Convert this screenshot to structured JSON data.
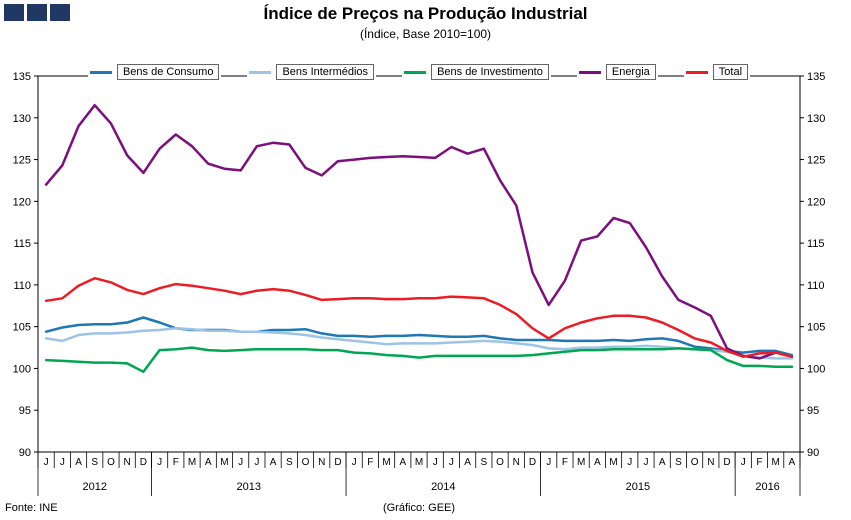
{
  "header": {
    "title": "Índice de Preços na Produção Industrial",
    "subtitle": "(Índice, Base 2010=100)"
  },
  "footer": {
    "source": "Fonte: INE",
    "credit": "(Gráfico: GEE)"
  },
  "logo": {
    "color": "#1F3864"
  },
  "chart_data": {
    "type": "line",
    "title": "Índice de Preços na Produção Industrial",
    "subtitle": "(Índice, Base 2010=100)",
    "ylabel": "",
    "xlabel": "",
    "ylim": [
      90,
      135
    ],
    "ytick_step": 5,
    "grid": false,
    "legend_position": "top",
    "months": [
      "J",
      "J",
      "A",
      "S",
      "O",
      "N",
      "D",
      "J",
      "F",
      "M",
      "A",
      "M",
      "J",
      "J",
      "A",
      "S",
      "O",
      "N",
      "D",
      "J",
      "F",
      "M",
      "A",
      "M",
      "J",
      "J",
      "A",
      "S",
      "O",
      "N",
      "D",
      "J",
      "F",
      "M",
      "A",
      "M",
      "J",
      "J",
      "A",
      "S",
      "O",
      "N",
      "D",
      "J",
      "F",
      "M",
      "A"
    ],
    "year_groups": [
      {
        "label": "2012",
        "count": 7
      },
      {
        "label": "2013",
        "count": 12
      },
      {
        "label": "2014",
        "count": 12
      },
      {
        "label": "2015",
        "count": 12
      },
      {
        "label": "2016",
        "count": 4
      }
    ],
    "series": [
      {
        "name": "Bens de Consumo",
        "color": "#1F78B4",
        "values": [
          104.4,
          104.9,
          105.2,
          105.3,
          105.3,
          105.5,
          106.1,
          105.5,
          104.8,
          104.6,
          104.6,
          104.6,
          104.4,
          104.4,
          104.6,
          104.6,
          104.7,
          104.2,
          103.9,
          103.9,
          103.8,
          103.9,
          103.9,
          104.0,
          103.9,
          103.8,
          103.8,
          103.9,
          103.6,
          103.4,
          103.4,
          103.4,
          103.3,
          103.3,
          103.3,
          103.4,
          103.3,
          103.5,
          103.6,
          103.3,
          102.6,
          102.4,
          102.1,
          101.9,
          102.1,
          102.1,
          101.6
        ]
      },
      {
        "name": "Bens Intermédios",
        "color": "#9DC3E6",
        "values": [
          103.6,
          103.3,
          104.0,
          104.2,
          104.2,
          104.3,
          104.5,
          104.6,
          104.8,
          104.7,
          104.5,
          104.5,
          104.4,
          104.4,
          104.3,
          104.2,
          104.0,
          103.7,
          103.5,
          103.3,
          103.1,
          102.9,
          103.0,
          103.0,
          103.0,
          103.1,
          103.2,
          103.3,
          103.2,
          103.0,
          102.8,
          102.4,
          102.3,
          102.5,
          102.5,
          102.6,
          102.6,
          102.7,
          102.6,
          102.4,
          102.3,
          102.2,
          102.0,
          101.5,
          101.3,
          101.2,
          101.2
        ]
      },
      {
        "name": "Bens de Investimento",
        "color": "#00A651",
        "values": [
          101.0,
          100.9,
          100.8,
          100.7,
          100.7,
          100.6,
          99.6,
          102.2,
          102.3,
          102.5,
          102.2,
          102.1,
          102.2,
          102.3,
          102.3,
          102.3,
          102.3,
          102.2,
          102.2,
          101.9,
          101.8,
          101.6,
          101.5,
          101.3,
          101.5,
          101.5,
          101.5,
          101.5,
          101.5,
          101.5,
          101.6,
          101.8,
          102.0,
          102.2,
          102.2,
          102.3,
          102.3,
          102.3,
          102.3,
          102.4,
          102.3,
          102.2,
          101.0,
          100.3,
          100.3,
          100.2,
          100.2
        ]
      },
      {
        "name": "Energia",
        "color": "#7D0E7E",
        "values": [
          122.0,
          124.3,
          129.0,
          131.5,
          129.3,
          125.5,
          123.4,
          126.3,
          128.0,
          126.6,
          124.5,
          123.9,
          123.7,
          126.6,
          127.0,
          126.8,
          124.0,
          123.1,
          124.8,
          125.0,
          125.2,
          125.3,
          125.4,
          125.3,
          125.2,
          126.5,
          125.7,
          126.3,
          122.5,
          119.5,
          111.5,
          107.6,
          110.5,
          115.3,
          115.8,
          118.0,
          117.4,
          114.5,
          111.0,
          108.2,
          107.3,
          106.3,
          102.4,
          101.5,
          101.2,
          101.9,
          101.4
        ]
      },
      {
        "name": "Total",
        "color": "#ED1C24",
        "values": [
          108.1,
          108.4,
          109.9,
          110.8,
          110.3,
          109.4,
          108.9,
          109.6,
          110.1,
          109.9,
          109.6,
          109.3,
          108.9,
          109.3,
          109.5,
          109.3,
          108.8,
          108.2,
          108.3,
          108.4,
          108.4,
          108.3,
          108.3,
          108.4,
          108.4,
          108.6,
          108.5,
          108.4,
          107.6,
          106.5,
          104.8,
          103.6,
          104.8,
          105.5,
          106.0,
          106.3,
          106.3,
          106.1,
          105.5,
          104.6,
          103.6,
          103.1,
          102.1,
          101.4,
          101.8,
          101.9,
          101.4
        ]
      }
    ]
  }
}
